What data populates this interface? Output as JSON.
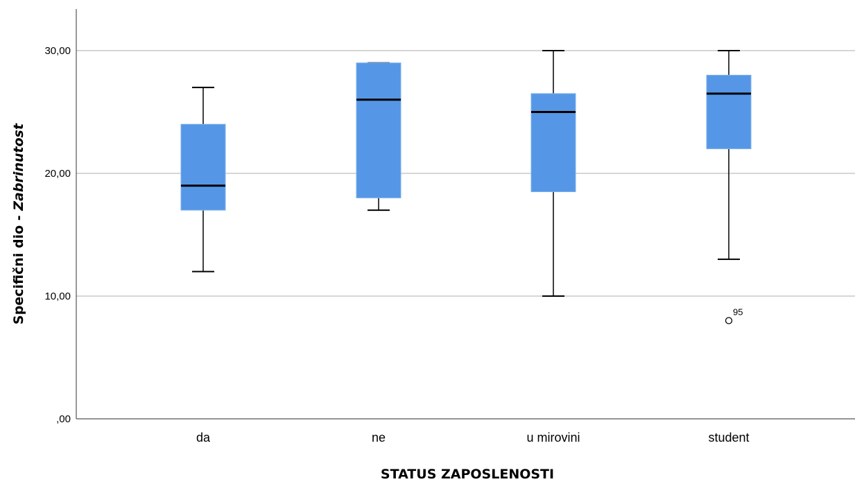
{
  "chart_data": {
    "type": "boxplot",
    "title": "",
    "xlabel": "STATUS ZAPOSLENOSTI",
    "ylabel_main": "Specifični dio - ",
    "ylabel_italic": "Zabrinutost",
    "ylim": [
      0,
      33
    ],
    "yticks": [
      0,
      10,
      20,
      30
    ],
    "ytick_labels": [
      ",00",
      "10,00",
      "20,00",
      "30,00"
    ],
    "grid": true,
    "box_color": "#5597e6",
    "categories": [
      "da",
      "ne",
      "u mirovini",
      "student"
    ],
    "boxes": [
      {
        "category": "da",
        "whisker_low": 12,
        "q1": 17,
        "median": 19,
        "q3": 24,
        "whisker_high": 27
      },
      {
        "category": "ne",
        "whisker_low": 17,
        "q1": 18,
        "median": 26,
        "q3": 29,
        "whisker_high": 29
      },
      {
        "category": "u mirovini",
        "whisker_low": 10,
        "q1": 18.5,
        "median": 25,
        "q3": 26.5,
        "whisker_high": 30
      },
      {
        "category": "student",
        "whisker_low": 13,
        "q1": 22,
        "median": 26.5,
        "q3": 28,
        "whisker_high": 30
      }
    ],
    "outliers": [
      {
        "category": "student",
        "value": 8,
        "label": "95"
      }
    ]
  }
}
